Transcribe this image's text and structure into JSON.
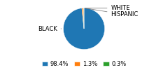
{
  "chart_data": {
    "type": "pie",
    "categories": [
      "BLACK",
      "WHITE",
      "HISPANIC"
    ],
    "values": [
      98.4,
      1.3,
      0.3
    ],
    "value_labels": [
      "98.4%",
      "1.3%",
      "0.3%"
    ],
    "legend": "lower center"
  }
}
